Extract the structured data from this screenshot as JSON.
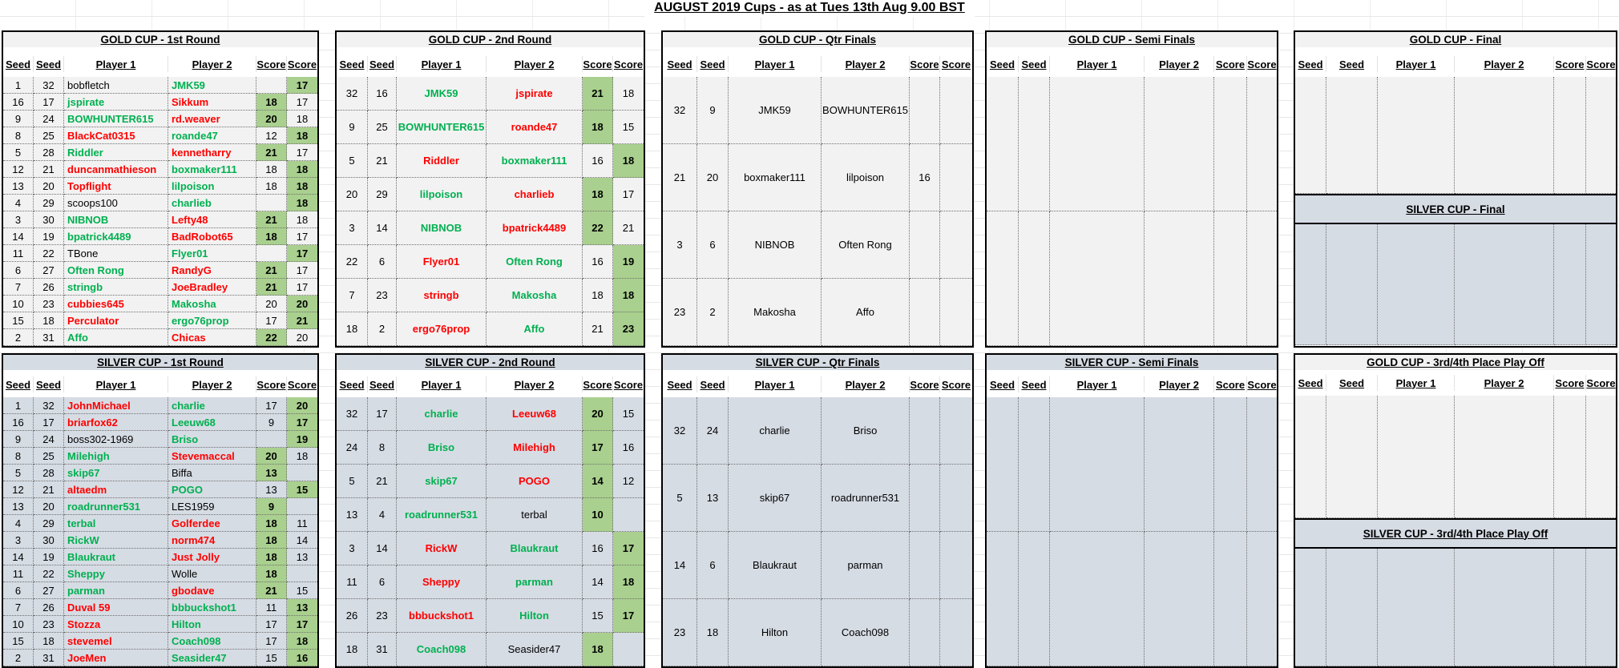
{
  "page_title": "AUGUST 2019 Cups - as at Tues 13th Aug 9.00 BST",
  "columns": [
    "Seed",
    "Seed",
    "Player 1",
    "Player 2",
    "Score",
    "Score"
  ],
  "colors": {
    "green_score_fill": "#A9D08E",
    "gold_row_fill": "#F2F2F2",
    "silver_row_fill": "#D6DCE4",
    "winner_text": "#00B050",
    "loser_text": "#FF0000",
    "neutral_text": "#000000"
  },
  "legend": {
    "g": "green winner text",
    "r": "red loser text",
    "k": "black neutral text",
    "row_format": "[seed1, seed2, player1, color1, player2, color2, score1, score1_green, score2, score2_green]"
  },
  "sections": {
    "gold_r1": {
      "title": "GOLD CUP - 1st Round",
      "headers": 1,
      "tall": 0,
      "rows": [
        [
          "1",
          "32",
          "bobfletch",
          "k",
          "JMK59",
          "g",
          "",
          0,
          "17",
          1
        ],
        [
          "16",
          "17",
          "jspirate",
          "g",
          "Sikkum",
          "r",
          "18",
          1,
          "17",
          0
        ],
        [
          "9",
          "24",
          "BOWHUNTER615",
          "g",
          "rd.weaver",
          "r",
          "20",
          1,
          "18",
          0
        ],
        [
          "8",
          "25",
          "BlackCat0315",
          "r",
          "roande47",
          "g",
          "12",
          0,
          "18",
          1
        ],
        [
          "5",
          "28",
          "Riddler",
          "g",
          "kennetharry",
          "r",
          "21",
          1,
          "17",
          0
        ],
        [
          "12",
          "21",
          "duncanmathieson",
          "r",
          "boxmaker111",
          "g",
          "18",
          0,
          "18",
          1
        ],
        [
          "13",
          "20",
          "Topflight",
          "r",
          "lilpoison",
          "g",
          "18",
          0,
          "18",
          1
        ],
        [
          "4",
          "29",
          "scoops100",
          "k",
          "charlieb",
          "g",
          "",
          0,
          "18",
          1
        ],
        [
          "3",
          "30",
          "NIBNOB",
          "g",
          "Lefty48",
          "r",
          "21",
          1,
          "18",
          0
        ],
        [
          "14",
          "19",
          "bpatrick4489",
          "g",
          "BadRobot65",
          "r",
          "18",
          1,
          "17",
          0
        ],
        [
          "11",
          "22",
          "TBone",
          "k",
          "Flyer01",
          "g",
          "",
          0,
          "17",
          1
        ],
        [
          "6",
          "27",
          "Often Rong",
          "g",
          "RandyG",
          "r",
          "21",
          1,
          "17",
          0
        ],
        [
          "7",
          "26",
          "stringb",
          "g",
          "JoeBradley",
          "r",
          "21",
          1,
          "17",
          0
        ],
        [
          "10",
          "23",
          "cubbies645",
          "r",
          "Makosha",
          "g",
          "20",
          0,
          "20",
          1
        ],
        [
          "15",
          "18",
          "Perculator",
          "r",
          "ergo76prop",
          "g",
          "17",
          0,
          "21",
          1
        ],
        [
          "2",
          "31",
          "Affo",
          "g",
          "Chicas",
          "r",
          "22",
          1,
          "20",
          0
        ]
      ]
    },
    "silver_r1": {
      "title": "SILVER CUP - 1st Round",
      "headers": 1,
      "tall": 0,
      "rows": [
        [
          "1",
          "32",
          "JohnMichael",
          "r",
          "charlie",
          "g",
          "17",
          0,
          "20",
          1
        ],
        [
          "16",
          "17",
          "briarfox62",
          "r",
          "Leeuw68",
          "g",
          "9",
          0,
          "17",
          1
        ],
        [
          "9",
          "24",
          "boss302-1969",
          "k",
          "Briso",
          "g",
          "",
          0,
          "19",
          1
        ],
        [
          "8",
          "25",
          "Milehigh",
          "g",
          "Stevemaccal",
          "r",
          "20",
          1,
          "18",
          0
        ],
        [
          "5",
          "28",
          "skip67",
          "g",
          "Biffa",
          "k",
          "13",
          1,
          "",
          0
        ],
        [
          "12",
          "21",
          "altaedm",
          "r",
          "POGO",
          "g",
          "13",
          0,
          "15",
          1
        ],
        [
          "13",
          "20",
          "roadrunner531",
          "g",
          "LES1959",
          "k",
          "9",
          1,
          "",
          0
        ],
        [
          "4",
          "29",
          "terbal",
          "g",
          "Golferdee",
          "r",
          "18",
          1,
          "11",
          0
        ],
        [
          "3",
          "30",
          "RickW",
          "g",
          "norm474",
          "r",
          "18",
          1,
          "14",
          0
        ],
        [
          "14",
          "19",
          "Blaukraut",
          "g",
          "Just Jolly",
          "r",
          "18",
          1,
          "13",
          0
        ],
        [
          "11",
          "22",
          "Sheppy",
          "g",
          "Wolle",
          "k",
          "18",
          1,
          "",
          0
        ],
        [
          "6",
          "27",
          "parman",
          "g",
          "gbodave",
          "r",
          "21",
          1,
          "15",
          0
        ],
        [
          "7",
          "26",
          "Duval 59",
          "r",
          "bbbuckshot1",
          "g",
          "11",
          0,
          "13",
          1
        ],
        [
          "10",
          "23",
          "Stozza",
          "r",
          "Hilton",
          "g",
          "17",
          0,
          "17",
          1
        ],
        [
          "15",
          "18",
          "stevemel",
          "r",
          "Coach098",
          "g",
          "17",
          0,
          "18",
          1
        ],
        [
          "2",
          "31",
          "JoeMen",
          "r",
          "Seasider47",
          "g",
          "15",
          0,
          "16",
          1
        ]
      ]
    },
    "gold_r2": {
      "title": "GOLD CUP - 2nd Round",
      "headers": 1,
      "tall": 0,
      "rows": [
        [
          "32",
          "16",
          "JMK59",
          "g",
          "jspirate",
          "r",
          "21",
          1,
          "18",
          0
        ],
        [
          "9",
          "25",
          "BOWHUNTER615",
          "g",
          "roande47",
          "r",
          "18",
          1,
          "15",
          0
        ],
        [
          "5",
          "21",
          "Riddler",
          "r",
          "boxmaker111",
          "g",
          "16",
          0,
          "18",
          1
        ],
        [
          "20",
          "29",
          "lilpoison",
          "g",
          "charlieb",
          "r",
          "18",
          1,
          "17",
          0
        ],
        [
          "3",
          "14",
          "NIBNOB",
          "g",
          "bpatrick4489",
          "r",
          "22",
          1,
          "21",
          0
        ],
        [
          "22",
          "6",
          "Flyer01",
          "r",
          "Often Rong",
          "g",
          "16",
          0,
          "19",
          1
        ],
        [
          "7",
          "23",
          "stringb",
          "r",
          "Makosha",
          "g",
          "18",
          0,
          "18",
          1
        ],
        [
          "18",
          "2",
          "ergo76prop",
          "r",
          "Affo",
          "g",
          "21",
          0,
          "23",
          1
        ]
      ]
    },
    "silver_r2": {
      "title": "SILVER CUP - 2nd Round",
      "headers": 1,
      "tall": 0,
      "rows": [
        [
          "32",
          "17",
          "charlie",
          "g",
          "Leeuw68",
          "r",
          "20",
          1,
          "15",
          0
        ],
        [
          "24",
          "8",
          "Briso",
          "g",
          "Milehigh",
          "r",
          "17",
          1,
          "16",
          0
        ],
        [
          "5",
          "21",
          "skip67",
          "g",
          "POGO",
          "r",
          "14",
          1,
          "12",
          0
        ],
        [
          "13",
          "4",
          "roadrunner531",
          "g",
          "terbal",
          "k",
          "10",
          1,
          "",
          0
        ],
        [
          "3",
          "14",
          "RickW",
          "r",
          "Blaukraut",
          "g",
          "16",
          0,
          "17",
          1
        ],
        [
          "11",
          "6",
          "Sheppy",
          "r",
          "parman",
          "g",
          "14",
          0,
          "18",
          1
        ],
        [
          "26",
          "23",
          "bbbuckshot1",
          "r",
          "Hilton",
          "g",
          "15",
          0,
          "17",
          1
        ],
        [
          "18",
          "31",
          "Coach098",
          "g",
          "Seasider47",
          "k",
          "18",
          1,
          "",
          0
        ]
      ]
    },
    "gold_qf": {
      "title": "GOLD CUP - Qtr Finals",
      "headers": 1,
      "tall": 0,
      "rows": [
        [
          "32",
          "9",
          "JMK59",
          "k",
          "BOWHUNTER615",
          "k",
          "",
          0,
          "",
          0
        ],
        [
          "21",
          "20",
          "boxmaker111",
          "k",
          "lilpoison",
          "k",
          "16",
          0,
          "",
          0
        ],
        [
          "3",
          "6",
          "NIBNOB",
          "k",
          "Often Rong",
          "k",
          "",
          0,
          "",
          0
        ],
        [
          "23",
          "2",
          "Makosha",
          "k",
          "Affo",
          "k",
          "",
          0,
          "",
          0
        ]
      ]
    },
    "silver_qf": {
      "title": "SILVER CUP - Qtr Finals",
      "headers": 1,
      "tall": 0,
      "rows": [
        [
          "32",
          "24",
          "charlie",
          "k",
          "Briso",
          "k",
          "",
          0,
          "",
          0
        ],
        [
          "5",
          "13",
          "skip67",
          "k",
          "roadrunner531",
          "k",
          "",
          0,
          "",
          0
        ],
        [
          "14",
          "6",
          "Blaukraut",
          "k",
          "parman",
          "k",
          "",
          0,
          "",
          0
        ],
        [
          "23",
          "18",
          "Hilton",
          "k",
          "Coach098",
          "k",
          "",
          0,
          "",
          0
        ]
      ]
    },
    "gold_sf": {
      "title": "GOLD CUP - Semi Finals",
      "headers": 1,
      "tall": 0,
      "rows": [
        [
          "",
          "",
          "",
          "k",
          "",
          "k",
          "",
          0,
          "",
          0
        ],
        [
          "",
          "",
          "",
          "k",
          "",
          "k",
          "",
          0,
          "",
          0
        ]
      ]
    },
    "silver_sf": {
      "title": "SILVER CUP - Semi Finals",
      "headers": 1,
      "tall": 0,
      "rows": [
        [
          "",
          "",
          "",
          "k",
          "",
          "k",
          "",
          0,
          "",
          0
        ],
        [
          "",
          "",
          "",
          "k",
          "",
          "k",
          "",
          0,
          "",
          0
        ]
      ]
    },
    "gold_final": {
      "title": "GOLD CUP - Final",
      "headers": 1,
      "tall": 0,
      "rows": [
        [
          "",
          "",
          "",
          "k",
          "",
          "k",
          "",
          0,
          "",
          0
        ]
      ]
    },
    "silver_final": {
      "title": "SILVER CUP - Final",
      "headers": 0,
      "tall": 1,
      "rows": [
        [
          "",
          "",
          "",
          "k",
          "",
          "k",
          "",
          0,
          "",
          0
        ]
      ]
    },
    "gold_po": {
      "title": "GOLD CUP - 3rd/4th Place Play Off",
      "headers": 1,
      "tall": 0,
      "rows": [
        [
          "",
          "",
          "",
          "k",
          "",
          "k",
          "",
          0,
          "",
          0
        ]
      ]
    },
    "silver_po": {
      "title": "SILVER CUP - 3rd/4th Place Play Off",
      "headers": 0,
      "tall": 1,
      "rows": [
        [
          "",
          "",
          "",
          "k",
          "",
          "k",
          "",
          0,
          "",
          0
        ]
      ]
    }
  }
}
